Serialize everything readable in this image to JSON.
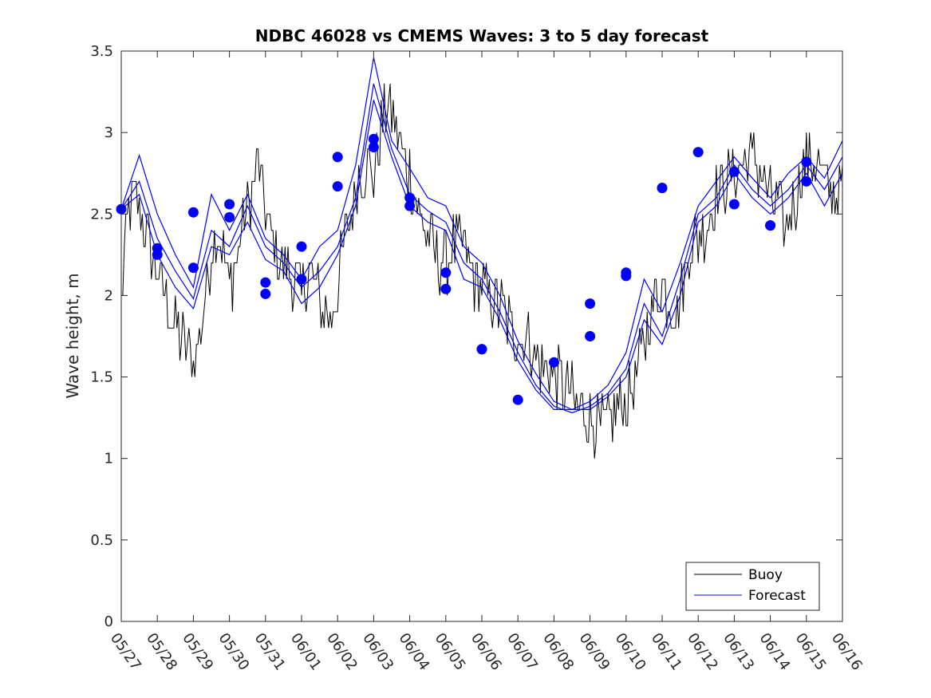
{
  "chart_data": {
    "type": "line",
    "title": "NDBC 46028 vs CMEMS Waves: 3 to 5 day forecast",
    "xlabel": "",
    "ylabel": "Wave height, m",
    "xlim": [
      "05/27",
      "06/16"
    ],
    "ylim": [
      0,
      3.5
    ],
    "yticks": [
      0,
      0.5,
      1,
      1.5,
      2,
      2.5,
      3,
      3.5
    ],
    "ytick_labels": [
      "0",
      "0.5",
      "1",
      "1.5",
      "2",
      "2.5",
      "3",
      "3.5"
    ],
    "xtick_labels": [
      "05/27",
      "05/28",
      "05/29",
      "05/30",
      "05/31",
      "06/01",
      "06/02",
      "06/03",
      "06/04",
      "06/05",
      "06/06",
      "06/07",
      "06/08",
      "06/09",
      "06/10",
      "06/11",
      "06/12",
      "06/13",
      "06/14",
      "06/15",
      "06/16"
    ],
    "grid": false,
    "legend": {
      "position": "bottom-right",
      "entries": [
        "Buoy",
        "Forecast"
      ]
    },
    "colors": {
      "buoy": "#000000",
      "forecast": "#0000ff"
    },
    "buoy_trend": {
      "name": "Buoy",
      "x_days": [
        0,
        0.2,
        0.4,
        0.6,
        0.8,
        1.0,
        1.2,
        1.4,
        1.6,
        1.8,
        2.0,
        2.2,
        2.4,
        2.6,
        2.8,
        3.0,
        3.2,
        3.4,
        3.6,
        3.8,
        4.0,
        4.2,
        4.4,
        4.6,
        4.8,
        5.0,
        5.2,
        5.4,
        5.6,
        5.8,
        6.0,
        6.2,
        6.4,
        6.6,
        6.8,
        7.0,
        7.2,
        7.4,
        7.6,
        7.8,
        8.0,
        8.2,
        8.4,
        8.6,
        8.8,
        9.0,
        9.2,
        9.4,
        9.6,
        9.8,
        10.0,
        10.2,
        10.4,
        10.6,
        10.8,
        11.0,
        11.2,
        11.4,
        11.6,
        11.8,
        12.0,
        12.2,
        12.4,
        12.6,
        12.8,
        13.0,
        13.2,
        13.4,
        13.6,
        13.8,
        14.0,
        14.2,
        14.4,
        14.6,
        14.8,
        15.0,
        15.2,
        15.4,
        15.6,
        15.8,
        16.0,
        16.2,
        16.4,
        16.6,
        16.8,
        17.0,
        17.2,
        17.4,
        17.6,
        17.8,
        18.0,
        18.2,
        18.4,
        18.6,
        18.8,
        19.0,
        19.2,
        19.4,
        19.6,
        19.8,
        20.0
      ],
      "y": [
        1.95,
        2.55,
        2.6,
        2.45,
        2.3,
        2.15,
        2.0,
        1.85,
        1.75,
        1.7,
        1.6,
        1.75,
        2.1,
        2.4,
        2.3,
        2.05,
        2.2,
        2.5,
        2.6,
        2.8,
        2.5,
        2.35,
        2.2,
        2.15,
        2.1,
        2.0,
        2.15,
        2.05,
        1.9,
        1.85,
        2.05,
        2.35,
        2.5,
        2.75,
        2.8,
        2.75,
        3.0,
        3.2,
        3.05,
        2.85,
        2.75,
        2.55,
        2.4,
        2.3,
        2.2,
        2.2,
        2.3,
        2.35,
        2.25,
        2.1,
        2.05,
        2.0,
        1.95,
        1.9,
        1.8,
        1.75,
        1.75,
        1.65,
        1.6,
        1.55,
        1.5,
        1.45,
        1.4,
        1.35,
        1.3,
        1.25,
        1.2,
        1.2,
        1.25,
        1.3,
        1.35,
        1.45,
        1.6,
        1.8,
        2.0,
        2.05,
        1.95,
        1.9,
        2.1,
        2.3,
        2.35,
        2.4,
        2.55,
        2.65,
        2.7,
        2.75,
        2.8,
        2.85,
        2.8,
        2.7,
        2.6,
        2.55,
        2.4,
        2.5,
        2.7,
        2.8,
        2.85,
        2.75,
        2.65,
        2.6,
        2.7
      ]
    },
    "forecast_series": [
      {
        "name": "Forecast",
        "x_days": [
          0,
          0.5,
          1.0,
          1.5,
          2.0,
          2.5,
          3.0,
          3.5,
          4.0,
          4.5,
          5.0,
          5.5,
          6.0,
          6.5,
          7.0,
          7.5,
          8.0,
          8.5,
          9.0,
          9.5,
          10.0,
          10.5,
          11.0,
          11.5,
          12.0,
          12.5,
          13.0,
          13.5,
          14.0,
          14.5,
          15.0,
          15.5,
          16.0,
          16.5,
          17.0,
          17.5,
          18.0,
          18.5,
          19.0,
          19.5,
          20.0
        ],
        "y": [
          2.53,
          2.86,
          2.5,
          2.25,
          2.05,
          2.62,
          2.4,
          2.62,
          2.35,
          2.25,
          2.1,
          2.3,
          2.4,
          2.8,
          3.46,
          2.95,
          2.78,
          2.6,
          2.55,
          2.3,
          2.2,
          2.0,
          1.72,
          1.52,
          1.35,
          1.3,
          1.35,
          1.45,
          1.65,
          2.1,
          1.9,
          2.2,
          2.55,
          2.7,
          2.85,
          2.72,
          2.6,
          2.75,
          2.85,
          2.72,
          2.95
        ]
      },
      {
        "name": "Forecast",
        "x_days": [
          0,
          0.5,
          1.0,
          1.5,
          2.0,
          2.5,
          3.0,
          3.5,
          4.0,
          4.5,
          5.0,
          5.5,
          6.0,
          6.5,
          7.0,
          7.5,
          8.0,
          8.5,
          9.0,
          9.5,
          10.0,
          10.5,
          11.0,
          11.5,
          12.0,
          12.5,
          13.0,
          13.5,
          14.0,
          14.5,
          15.0,
          15.5,
          16.0,
          16.5,
          17.0,
          17.5,
          18.0,
          18.5,
          19.0,
          19.5,
          20.0
        ],
        "y": [
          2.53,
          2.7,
          2.35,
          2.15,
          1.98,
          2.4,
          2.3,
          2.55,
          2.3,
          2.2,
          2.05,
          2.15,
          2.3,
          2.6,
          3.3,
          2.9,
          2.62,
          2.52,
          2.45,
          2.2,
          2.1,
          1.9,
          1.65,
          1.45,
          1.32,
          1.28,
          1.32,
          1.4,
          1.55,
          1.95,
          1.75,
          2.1,
          2.5,
          2.6,
          2.8,
          2.65,
          2.55,
          2.65,
          2.8,
          2.65,
          2.85
        ]
      },
      {
        "name": "Forecast",
        "x_days": [
          0,
          0.5,
          1.0,
          1.5,
          2.0,
          2.5,
          3.0,
          3.5,
          4.0,
          4.5,
          5.0,
          5.5,
          6.0,
          6.5,
          7.0,
          7.5,
          8.0,
          8.5,
          9.0,
          9.5,
          10.0,
          10.5,
          11.0,
          11.5,
          12.0,
          12.5,
          13.0,
          13.5,
          14.0,
          14.5,
          15.0,
          15.5,
          16.0,
          16.5,
          17.0,
          17.5,
          18.0,
          18.5,
          19.0,
          19.5,
          20.0
        ],
        "y": [
          2.53,
          2.62,
          2.25,
          2.05,
          1.92,
          2.3,
          2.25,
          2.45,
          2.22,
          2.15,
          1.95,
          2.05,
          2.25,
          2.55,
          3.2,
          2.85,
          2.55,
          2.45,
          2.4,
          2.1,
          2.05,
          1.85,
          1.6,
          1.42,
          1.3,
          1.3,
          1.3,
          1.38,
          1.5,
          1.85,
          1.7,
          2.0,
          2.45,
          2.55,
          2.75,
          2.6,
          2.5,
          2.6,
          2.75,
          2.55,
          2.75
        ]
      }
    ],
    "forecast_markers": {
      "x_days": [
        0,
        1,
        1,
        2,
        2,
        3,
        3,
        4,
        4,
        5,
        5,
        6,
        6,
        7,
        7,
        8,
        8,
        9,
        9,
        10,
        10,
        11,
        12,
        13,
        13,
        14,
        14,
        15,
        15,
        16,
        17,
        17,
        18,
        18,
        19,
        19
      ],
      "y": [
        2.53,
        2.29,
        2.25,
        2.51,
        2.17,
        2.56,
        2.48,
        2.08,
        2.01,
        2.3,
        2.1,
        2.85,
        2.67,
        2.96,
        2.91,
        2.6,
        2.55,
        2.14,
        2.04,
        1.67,
        1.67,
        1.36,
        1.59,
        1.95,
        1.75,
        2.14,
        2.12,
        2.66,
        2.66,
        2.88,
        2.76,
        2.56,
        2.43,
        2.43,
        2.82,
        2.7
      ]
    }
  }
}
